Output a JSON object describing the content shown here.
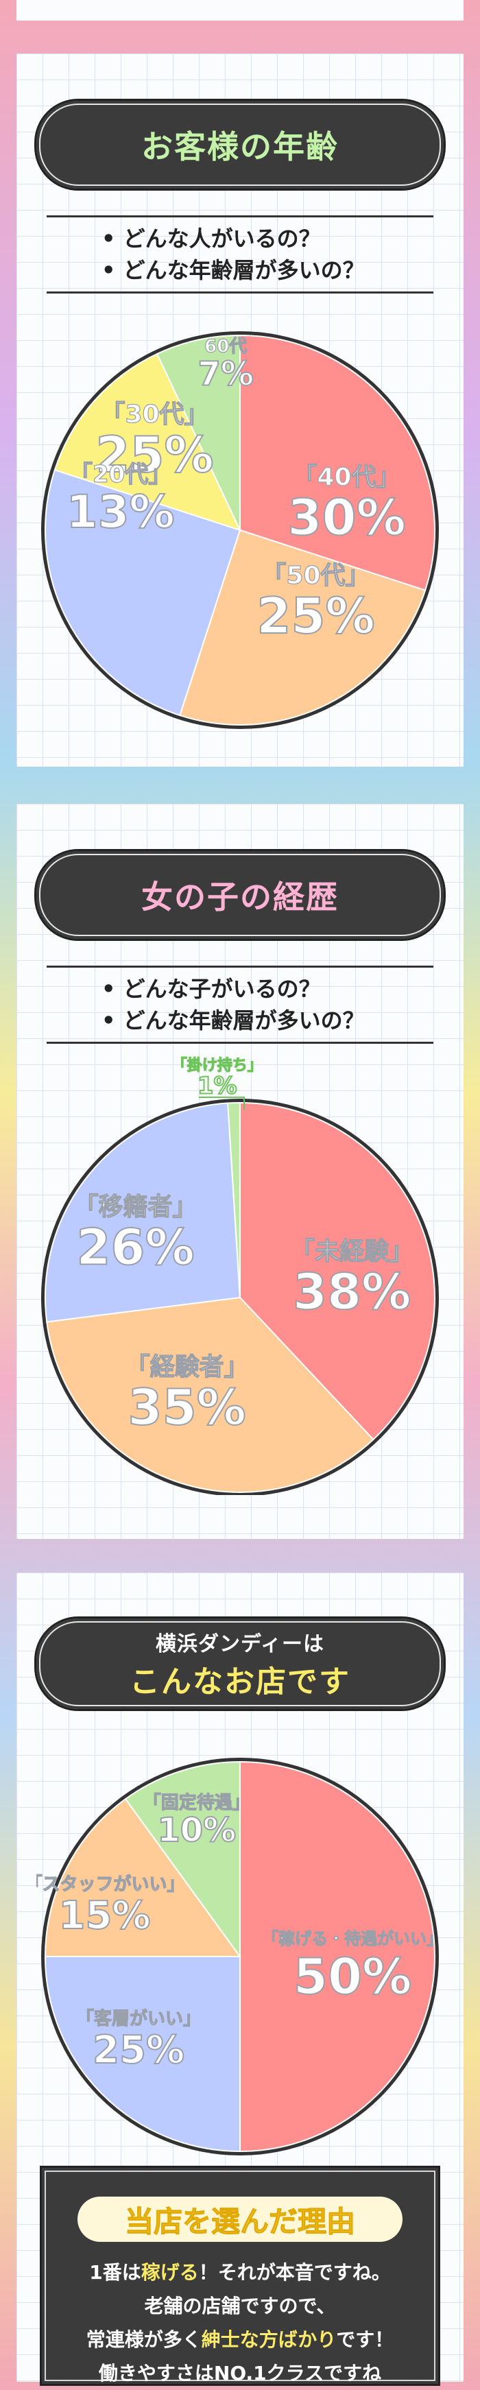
{
  "section1": {
    "title": "お客様の年齢",
    "questions": [
      "• どんな人がいるの？",
      "• どんな年齢層が多いの？"
    ]
  },
  "section2": {
    "title": "女の子の経歴",
    "questions": [
      "• どんな子がいるの？",
      "• どんな年齢層が多いの？"
    ]
  },
  "section3": {
    "subtitle": "横浜ダンディーは",
    "title": "こんなお店です"
  },
  "reason": {
    "heading": "当店を選んだ理由",
    "line1_a": "1番は",
    "line1_hl": "稼げる",
    "line1_b": "！それが本音ですね。",
    "line2": "老舗の店舗ですので、",
    "line3_a": "常連様が多く",
    "line3_hl": "紳士な方ばかり",
    "line3_b": "です！",
    "line4": "働きやすさはNO.1クラスですね"
  },
  "colors": {
    "red": "#ff8e8e",
    "orange": "#ffcb96",
    "blue": "#bccbff",
    "yellow": "#fbf282",
    "green": "#bde8a6",
    "outline": "#333333"
  },
  "chart_data": [
    {
      "type": "pie",
      "title": "お客様の年齢",
      "labels": [
        "「40代」",
        "「50代」",
        "「30代」",
        "「20代」",
        "60代"
      ],
      "values": [
        30,
        25,
        25,
        13,
        7
      ],
      "display": [
        "30%",
        "25%",
        "25%",
        "13%",
        "7%"
      ]
    },
    {
      "type": "pie",
      "title": "女の子の経歴",
      "labels": [
        "「未経験」",
        "「経験者」",
        "「移籍者」",
        "「掛け持ち」"
      ],
      "values": [
        38,
        35,
        26,
        1
      ],
      "display": [
        "38%",
        "35%",
        "26%",
        "1%"
      ]
    },
    {
      "type": "pie",
      "title": "こんなお店です",
      "labels": [
        "「稼げる・待遇がいい」",
        "「客層がいい」",
        "「スタッフがいい」",
        "「固定待遇」"
      ],
      "values": [
        50,
        25,
        15,
        10
      ],
      "display": [
        "50%",
        "25%",
        "15%",
        "10%"
      ]
    }
  ]
}
